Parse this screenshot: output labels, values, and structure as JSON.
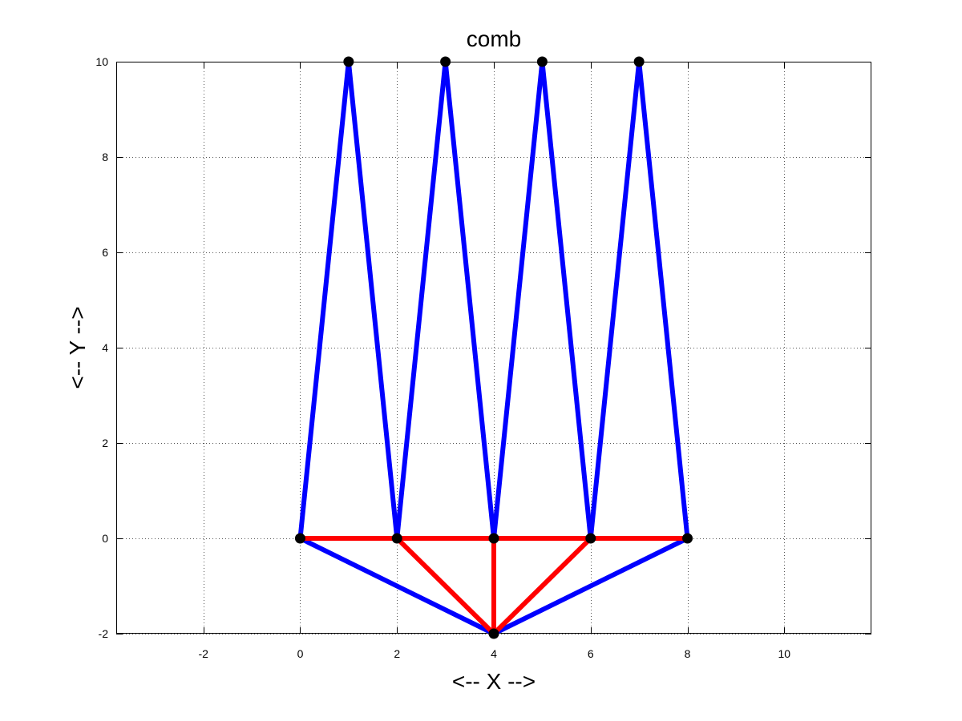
{
  "chart_data": {
    "type": "line",
    "title": "comb",
    "xlabel": "<-- X -->",
    "ylabel": "<-- Y -->",
    "xlim": [
      -3.8,
      11.8
    ],
    "ylim": [
      -2,
      10
    ],
    "xticks": [
      -2,
      0,
      2,
      4,
      6,
      8,
      10
    ],
    "yticks": [
      -2,
      0,
      2,
      4,
      6,
      8,
      10
    ],
    "grid": true,
    "colors": {
      "blue_edges": "#0000ff",
      "red_edges": "#ff0000",
      "nodes": "#000000",
      "grid": "#555555",
      "axes": "#000000"
    },
    "nodes": [
      {
        "x": 0,
        "y": 0
      },
      {
        "x": 1,
        "y": 10
      },
      {
        "x": 2,
        "y": 0
      },
      {
        "x": 3,
        "y": 10
      },
      {
        "x": 4,
        "y": 0
      },
      {
        "x": 5,
        "y": 10
      },
      {
        "x": 6,
        "y": 0
      },
      {
        "x": 7,
        "y": 10
      },
      {
        "x": 8,
        "y": 0
      },
      {
        "x": 4,
        "y": -2
      }
    ],
    "series": [
      {
        "color": "#0000ff",
        "edges": [
          [
            [
              0,
              0
            ],
            [
              1,
              10
            ]
          ],
          [
            [
              1,
              10
            ],
            [
              2,
              0
            ]
          ],
          [
            [
              2,
              0
            ],
            [
              3,
              10
            ]
          ],
          [
            [
              3,
              10
            ],
            [
              4,
              0
            ]
          ],
          [
            [
              4,
              0
            ],
            [
              5,
              10
            ]
          ],
          [
            [
              5,
              10
            ],
            [
              6,
              0
            ]
          ],
          [
            [
              6,
              0
            ],
            [
              7,
              10
            ]
          ],
          [
            [
              7,
              10
            ],
            [
              8,
              0
            ]
          ],
          [
            [
              0,
              0
            ],
            [
              4,
              -2
            ]
          ],
          [
            [
              8,
              0
            ],
            [
              4,
              -2
            ]
          ]
        ]
      },
      {
        "color": "#ff0000",
        "edges": [
          [
            [
              0,
              0
            ],
            [
              8,
              0
            ]
          ],
          [
            [
              2,
              0
            ],
            [
              4,
              -2
            ]
          ],
          [
            [
              4,
              0
            ],
            [
              4,
              -2
            ]
          ],
          [
            [
              6,
              0
            ],
            [
              4,
              -2
            ]
          ]
        ]
      }
    ]
  }
}
